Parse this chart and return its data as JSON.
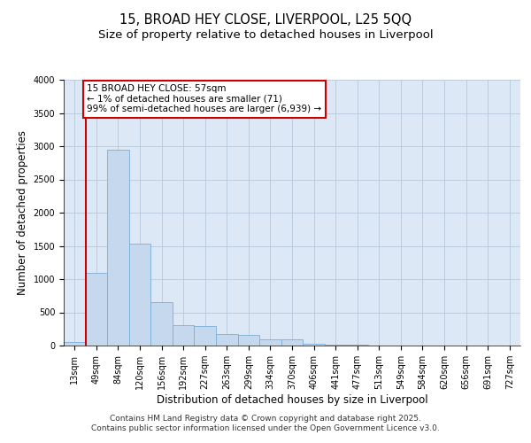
{
  "title_line1": "15, BROAD HEY CLOSE, LIVERPOOL, L25 5QQ",
  "title_line2": "Size of property relative to detached houses in Liverpool",
  "xlabel": "Distribution of detached houses by size in Liverpool",
  "ylabel": "Number of detached properties",
  "categories": [
    "13sqm",
    "49sqm",
    "84sqm",
    "120sqm",
    "156sqm",
    "192sqm",
    "227sqm",
    "263sqm",
    "299sqm",
    "334sqm",
    "370sqm",
    "406sqm",
    "441sqm",
    "477sqm",
    "513sqm",
    "549sqm",
    "584sqm",
    "620sqm",
    "656sqm",
    "691sqm",
    "727sqm"
  ],
  "values": [
    50,
    1100,
    2950,
    1530,
    650,
    310,
    300,
    170,
    160,
    100,
    90,
    30,
    20,
    10,
    5,
    3,
    2,
    0,
    0,
    0,
    0
  ],
  "bar_color": "#c5d8ee",
  "bar_edge_color": "#7aaed6",
  "grid_color": "#b8c8dc",
  "background_color": "#dce8f5",
  "vline_x": 0.5,
  "vline_color": "#cc0000",
  "annotation_text": "15 BROAD HEY CLOSE: 57sqm\n← 1% of detached houses are smaller (71)\n99% of semi-detached houses are larger (6,939) →",
  "annotation_box_color": "#cc0000",
  "ylim": [
    0,
    4000
  ],
  "yticks": [
    0,
    500,
    1000,
    1500,
    2000,
    2500,
    3000,
    3500,
    4000
  ],
  "footer_line1": "Contains HM Land Registry data © Crown copyright and database right 2025.",
  "footer_line2": "Contains public sector information licensed under the Open Government Licence v3.0.",
  "title_fontsize": 10.5,
  "subtitle_fontsize": 9.5,
  "axis_label_fontsize": 8.5,
  "tick_fontsize": 7,
  "footer_fontsize": 6.5,
  "annot_fontsize": 7.5
}
